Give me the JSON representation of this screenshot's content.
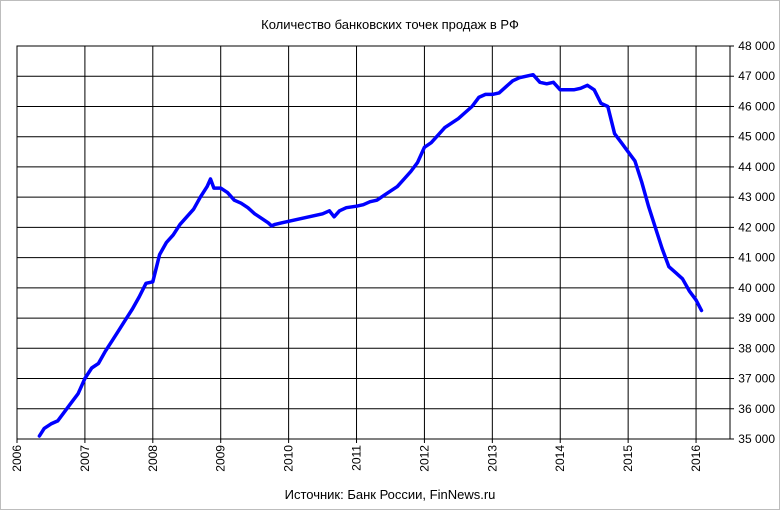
{
  "chart_data": {
    "type": "line",
    "title": "Количество банковских точек продаж в РФ",
    "source": "Источник: Банк России, FinNews.ru",
    "x_tick_labels": [
      "2006",
      "2007",
      "2008",
      "2009",
      "2010",
      "2011",
      "2012",
      "2013",
      "2014",
      "2015",
      "2016"
    ],
    "y_tick_labels": [
      "35 000",
      "36 000",
      "37 000",
      "38 000",
      "39 000",
      "40 000",
      "41 000",
      "42 000",
      "43 000",
      "44 000",
      "45 000",
      "46 000",
      "47 000",
      "48 000"
    ],
    "xlim": [
      2006,
      2016.5
    ],
    "ylim": [
      35000,
      48000
    ],
    "grid": true,
    "y_axis_side": "right",
    "line_color": "#0000ff",
    "series": [
      {
        "x": [
          2006.33,
          2006.4,
          2006.5,
          2006.6,
          2006.7,
          2006.8,
          2006.9,
          2007.0,
          2007.1,
          2007.2,
          2007.3,
          2007.4,
          2007.5,
          2007.6,
          2007.7,
          2007.8,
          2007.9,
          2008.0,
          2008.1,
          2008.2,
          2008.3,
          2008.4,
          2008.5,
          2008.6,
          2008.7,
          2008.8,
          2008.85,
          2008.9,
          2009.0,
          2009.1,
          2009.2,
          2009.3,
          2009.4,
          2009.5,
          2009.6,
          2009.7,
          2009.75,
          2009.8,
          2009.9,
          2010.0,
          2010.1,
          2010.2,
          2010.3,
          2010.4,
          2010.5,
          2010.6,
          2010.67,
          2010.75,
          2010.85,
          2011.0,
          2011.1,
          2011.2,
          2011.3,
          2011.4,
          2011.5,
          2011.6,
          2011.7,
          2011.8,
          2011.9,
          2012.0,
          2012.1,
          2012.2,
          2012.3,
          2012.4,
          2012.5,
          2012.6,
          2012.7,
          2012.8,
          2012.9,
          2013.0,
          2013.1,
          2013.2,
          2013.3,
          2013.4,
          2013.5,
          2013.6,
          2013.7,
          2013.8,
          2013.9,
          2014.0,
          2014.1,
          2014.2,
          2014.3,
          2014.4,
          2014.5,
          2014.6,
          2014.7,
          2014.8,
          2014.9,
          2015.0,
          2015.1,
          2015.2,
          2015.3,
          2015.4,
          2015.5,
          2015.6,
          2015.7,
          2015.8,
          2015.9,
          2016.0,
          2016.08
        ],
        "y": [
          35100,
          35350,
          35500,
          35600,
          35900,
          36200,
          36500,
          37000,
          37350,
          37500,
          37900,
          38250,
          38600,
          38950,
          39300,
          39700,
          40150,
          40200,
          41100,
          41500,
          41750,
          42100,
          42350,
          42600,
          43000,
          43350,
          43600,
          43300,
          43300,
          43150,
          42900,
          42800,
          42650,
          42450,
          42300,
          42150,
          42050,
          42100,
          42150,
          42200,
          42250,
          42300,
          42350,
          42400,
          42450,
          42550,
          42350,
          42550,
          42650,
          42700,
          42750,
          42850,
          42900,
          43050,
          43200,
          43350,
          43600,
          43850,
          44150,
          44650,
          44800,
          45050,
          45300,
          45450,
          45600,
          45800,
          46000,
          46300,
          46400,
          46400,
          46450,
          46650,
          46850,
          46950,
          47000,
          47050,
          46800,
          46750,
          46800,
          46550,
          46550,
          46550,
          46600,
          46700,
          46550,
          46100,
          46000,
          45100,
          44800,
          44500,
          44200,
          43500,
          42700,
          42000,
          41300,
          40700,
          40500,
          40300,
          39900,
          39600,
          39250
        ]
      }
    ]
  }
}
